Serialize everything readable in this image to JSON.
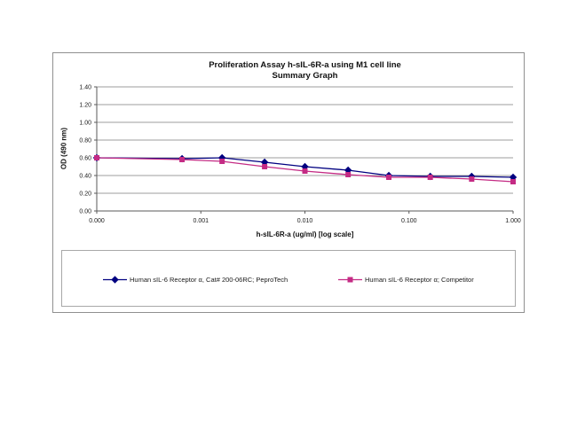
{
  "page": {
    "background": "#ffffff"
  },
  "chart": {
    "title_line1": "Proliferation Assay h-sIL-6R-a using M1 cell line",
    "title_line2": "Summary Graph",
    "y_axis_title": "OD (490 nm)",
    "x_axis_title": "h-sIL-6R-a (ug/ml) [log scale]"
  },
  "chart_data": {
    "type": "line",
    "title": "Proliferation Assay h-sIL-6R-a using M1 cell line — Summary Graph",
    "xlabel": "h-sIL-6R-a (ug/ml) [log scale]",
    "ylabel": "OD (490 nm)",
    "x_scale": "log",
    "x_axis_min": 0.0001,
    "x_axis_max": 1.0,
    "ylim": [
      0.0,
      1.4
    ],
    "grid": "horizontal",
    "legend_position": "bottom-box",
    "x_tick_values": [
      0.0001,
      0.001,
      0.01,
      0.1,
      1.0
    ],
    "x_tick_labels": [
      "0.000",
      "0.001",
      "0.010",
      "0.100",
      "1.000"
    ],
    "y_tick_values": [
      0.0,
      0.2,
      0.4,
      0.6,
      0.8,
      1.0,
      1.2,
      1.4
    ],
    "y_tick_labels": [
      "0.00",
      "0.20",
      "0.40",
      "0.60",
      "0.80",
      "1.00",
      "1.20",
      "1.40"
    ],
    "x": [
      0,
      0.00066,
      0.0016,
      0.0041,
      0.01,
      0.026,
      0.064,
      0.16,
      0.4,
      1.0
    ],
    "series": [
      {
        "name": "Human sIL-6 Receptor α, Cat# 200-06RC; PeproTech",
        "color": "#000080",
        "marker": "diamond",
        "values": [
          0.6,
          0.59,
          0.6,
          0.55,
          0.5,
          0.46,
          0.4,
          0.39,
          0.39,
          0.38
        ]
      },
      {
        "name": "Human sIL-6 Receptor α; Competitor",
        "color": "#C42B84",
        "marker": "square",
        "values": [
          0.6,
          0.58,
          0.56,
          0.5,
          0.45,
          0.41,
          0.38,
          0.38,
          0.36,
          0.33
        ]
      }
    ],
    "colors": {
      "gridline": "#9c9c9c",
      "axis": "#5a5a5a",
      "tick_text": "#1a1a1a"
    }
  }
}
